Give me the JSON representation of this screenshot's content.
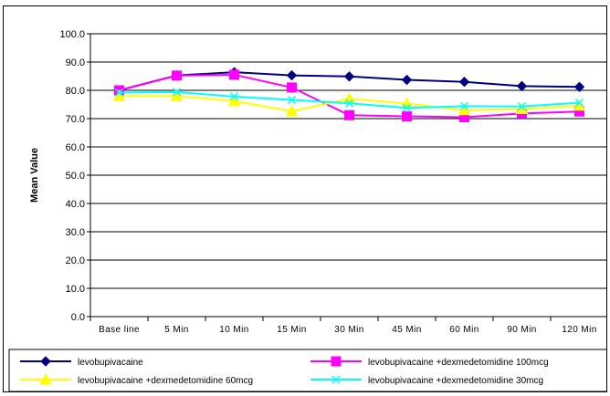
{
  "chart_data": {
    "type": "line",
    "title": "",
    "xlabel": "",
    "ylabel": "Mean Value",
    "ylim": [
      0,
      100
    ],
    "ytick_step": 10,
    "ytick_labels": [
      "0.0",
      "10.0",
      "20.0",
      "30.0",
      "40.0",
      "50.0",
      "60.0",
      "70.0",
      "80.0",
      "90.0",
      "100.0"
    ],
    "grid": "horizontal major gridlines",
    "legend_position": "bottom",
    "categories": [
      "Base line",
      "5 Min",
      "10 Min",
      "15 Min",
      "30 Min",
      "45 Min",
      "60 Min",
      "90 Min",
      "120 Min"
    ],
    "series": [
      {
        "name": "levobupivacaine",
        "color": "#000080",
        "marker": "diamond",
        "values": [
          80.0,
          85.3,
          86.4,
          85.3,
          84.9,
          83.7,
          83.0,
          81.5,
          81.2
        ]
      },
      {
        "name": "levobupivacaine +dexmedetomidine 100mcg",
        "color": "#FF00FF",
        "marker": "square",
        "values": [
          80.0,
          85.2,
          85.5,
          81.0,
          71.2,
          70.8,
          70.5,
          71.8,
          72.5
        ]
      },
      {
        "name": "levobupivacaine +dexmedetomidine 60mcg",
        "color": "#FFFF00",
        "marker": "triangle",
        "values": [
          78.0,
          78.0,
          76.2,
          72.6,
          77.0,
          75.3,
          73.0,
          73.4,
          74.6
        ]
      },
      {
        "name": "levobupivacaine +dexmedetomidine 30mcg",
        "color": "#00FFFF",
        "marker": "x",
        "values": [
          79.2,
          79.4,
          77.8,
          76.6,
          75.4,
          73.8,
          74.4,
          74.3,
          75.6
        ]
      }
    ]
  }
}
